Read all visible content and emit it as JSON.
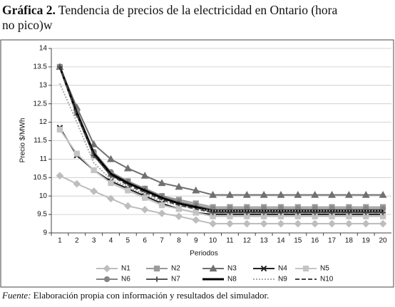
{
  "chart_data": {
    "type": "line",
    "title_label": "Gráfica 2.",
    "title": "Tendencia de precios de la electricidad en Ontario (hora no pico)w",
    "note_label": "Fuente:",
    "note": "Elaboración propia con información y resultados del simulador.",
    "x_label": "Periodos",
    "y_label": "Precio $/MWh",
    "categories": [
      "1",
      "2",
      "3",
      "4",
      "5",
      "6",
      "7",
      "8",
      "9",
      "10",
      "11",
      "12",
      "13",
      "14",
      "15",
      "16",
      "17",
      "18",
      "19",
      "20"
    ],
    "ylim": [
      9,
      14
    ],
    "yticks": [
      9,
      9.5,
      10,
      10.5,
      11,
      11.5,
      12,
      12.5,
      13,
      13.5,
      14
    ],
    "grid": true,
    "series": [
      {
        "name": "N1",
        "color": "#bdbdbd",
        "marker": "diamond",
        "dash": "solid",
        "values": [
          10.55,
          10.33,
          10.13,
          9.93,
          9.73,
          9.63,
          9.53,
          9.45,
          9.35,
          9.25,
          9.25,
          9.25,
          9.25,
          9.25,
          9.25,
          9.25,
          9.25,
          9.25,
          9.25,
          9.25
        ]
      },
      {
        "name": "N2",
        "color": "#9a9a9a",
        "marker": "square",
        "dash": "solid",
        "values": [
          13.5,
          12.3,
          11.1,
          10.6,
          10.4,
          10.2,
          10.0,
          9.9,
          9.8,
          9.7,
          9.7,
          9.7,
          9.7,
          9.7,
          9.7,
          9.7,
          9.7,
          9.7,
          9.7,
          9.7
        ]
      },
      {
        "name": "N3",
        "color": "#707070",
        "marker": "triangle",
        "dash": "solid",
        "values": [
          13.5,
          12.4,
          11.4,
          11.0,
          10.75,
          10.55,
          10.35,
          10.25,
          10.15,
          10.03,
          10.03,
          10.03,
          10.03,
          10.03,
          10.03,
          10.03,
          10.03,
          10.03,
          10.03,
          10.03
        ]
      },
      {
        "name": "N4",
        "color": "#222222",
        "marker": "x",
        "dash": "solid",
        "values": [
          11.85,
          11.1,
          10.7,
          10.4,
          10.2,
          10.0,
          9.8,
          9.65,
          9.55,
          9.5,
          9.5,
          9.5,
          9.5,
          9.5,
          9.5,
          9.5,
          9.5,
          9.5,
          9.5,
          9.5
        ]
      },
      {
        "name": "N5",
        "color": "#c4c4c4",
        "marker": "square",
        "dash": "solid",
        "values": [
          11.8,
          11.15,
          10.7,
          10.35,
          10.15,
          9.95,
          9.75,
          9.65,
          9.55,
          9.45,
          9.45,
          9.45,
          9.45,
          9.45,
          9.45,
          9.45,
          9.45,
          9.45,
          9.45,
          9.45
        ]
      },
      {
        "name": "N6",
        "color": "#858585",
        "marker": "circle",
        "dash": "solid",
        "values": [
          13.5,
          12.3,
          11.2,
          10.65,
          10.4,
          10.2,
          10.0,
          9.85,
          9.75,
          9.65,
          9.65,
          9.65,
          9.65,
          9.65,
          9.65,
          9.65,
          9.65,
          9.65,
          9.65,
          9.65
        ]
      },
      {
        "name": "N7",
        "color": "#555555",
        "marker": "plus",
        "dash": "solid",
        "values": [
          13.5,
          12.2,
          11.1,
          10.55,
          10.35,
          10.15,
          9.95,
          9.8,
          9.7,
          9.55,
          9.55,
          9.55,
          9.55,
          9.55,
          9.55,
          9.55,
          9.55,
          9.55,
          9.55,
          9.55
        ]
      },
      {
        "name": "N8",
        "color": "#000000",
        "marker": "none",
        "dash": "solid",
        "values": [
          13.5,
          12.25,
          11.15,
          10.6,
          10.35,
          10.15,
          9.95,
          9.8,
          9.7,
          9.6,
          9.6,
          9.6,
          9.6,
          9.6,
          9.6,
          9.6,
          9.6,
          9.6,
          9.6,
          9.6
        ]
      },
      {
        "name": "N9",
        "color": "#a8a8a8",
        "marker": "none",
        "dash": "dotted",
        "values": [
          13.05,
          12.0,
          10.9,
          10.45,
          10.25,
          10.05,
          9.85,
          9.75,
          9.65,
          9.6,
          9.6,
          9.6,
          9.6,
          9.6,
          9.6,
          9.6,
          9.6,
          9.6,
          9.6,
          9.6
        ]
      },
      {
        "name": "N10",
        "color": "#444444",
        "marker": "none",
        "dash": "dashed",
        "values": [
          13.5,
          12.2,
          11.1,
          10.55,
          10.3,
          10.1,
          9.9,
          9.75,
          9.65,
          9.55,
          9.55,
          9.55,
          9.55,
          9.55,
          9.55,
          9.55,
          9.55,
          9.55,
          9.55,
          9.55
        ]
      }
    ]
  }
}
